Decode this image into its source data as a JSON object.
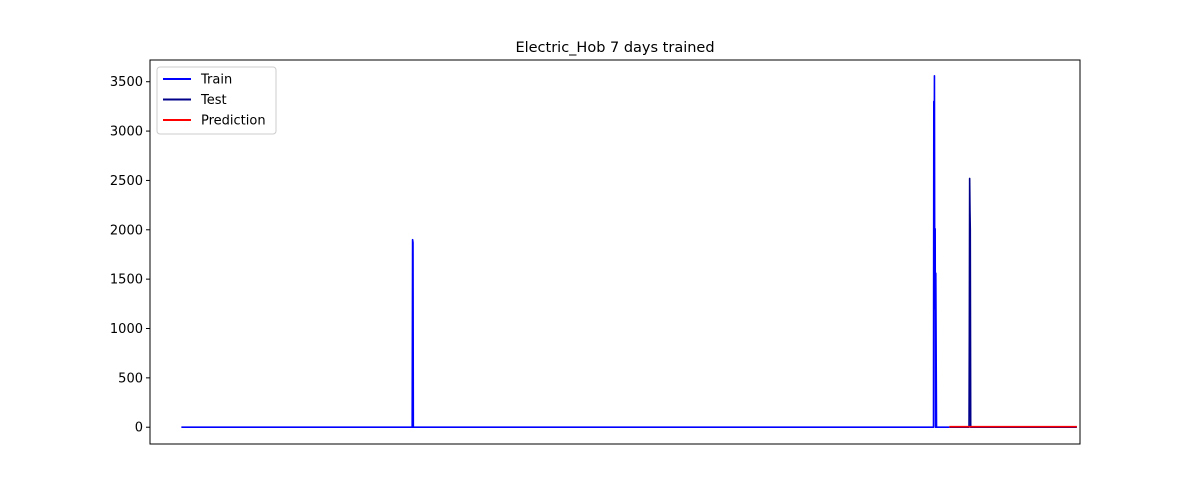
{
  "chart_data": {
    "type": "line",
    "title": "Electric_Hob 7 days trained",
    "xlabel": "",
    "ylabel": "",
    "x_ticks_visible": false,
    "xlim": [
      -30,
      860
    ],
    "ylim": [
      -170,
      3720
    ],
    "yticks": [
      0,
      500,
      1000,
      1500,
      2000,
      2500,
      3000,
      3500
    ],
    "ytick_labels": [
      "0",
      "500",
      "1000",
      "1500",
      "2000",
      "2500",
      "3000",
      "3500"
    ],
    "grid": false,
    "legend": {
      "placement": "upper-left",
      "entries": [
        "Train",
        "Test",
        "Prediction"
      ]
    },
    "colors": {
      "Train": "#0000ff",
      "Test": "#00008b",
      "Prediction": "#ff0000"
    },
    "series": [
      {
        "name": "Train",
        "x": [
          0,
          220.9,
          221.3,
          221.7,
          222.0,
          701,
          719.8,
          720.1,
          720.4,
          720.7,
          721.0,
          721.4,
          721.7,
          722.0,
          722.4,
          722.7,
          723.0,
          735
        ],
        "values": [
          0,
          0,
          1900,
          1870,
          0,
          0,
          0,
          3300,
          2100,
          3560,
          1200,
          2010,
          0,
          1560,
          600,
          0,
          0,
          0
        ]
      },
      {
        "name": "Test",
        "x": [
          735,
          753.8,
          754.1,
          754.4,
          754.7,
          755.0,
          755.4,
          756,
          857
        ],
        "values": [
          0,
          0,
          960,
          2520,
          2200,
          2000,
          0,
          0,
          0
        ]
      },
      {
        "name": "Prediction",
        "x": [
          735,
          857
        ],
        "values": [
          5,
          5
        ]
      }
    ]
  }
}
